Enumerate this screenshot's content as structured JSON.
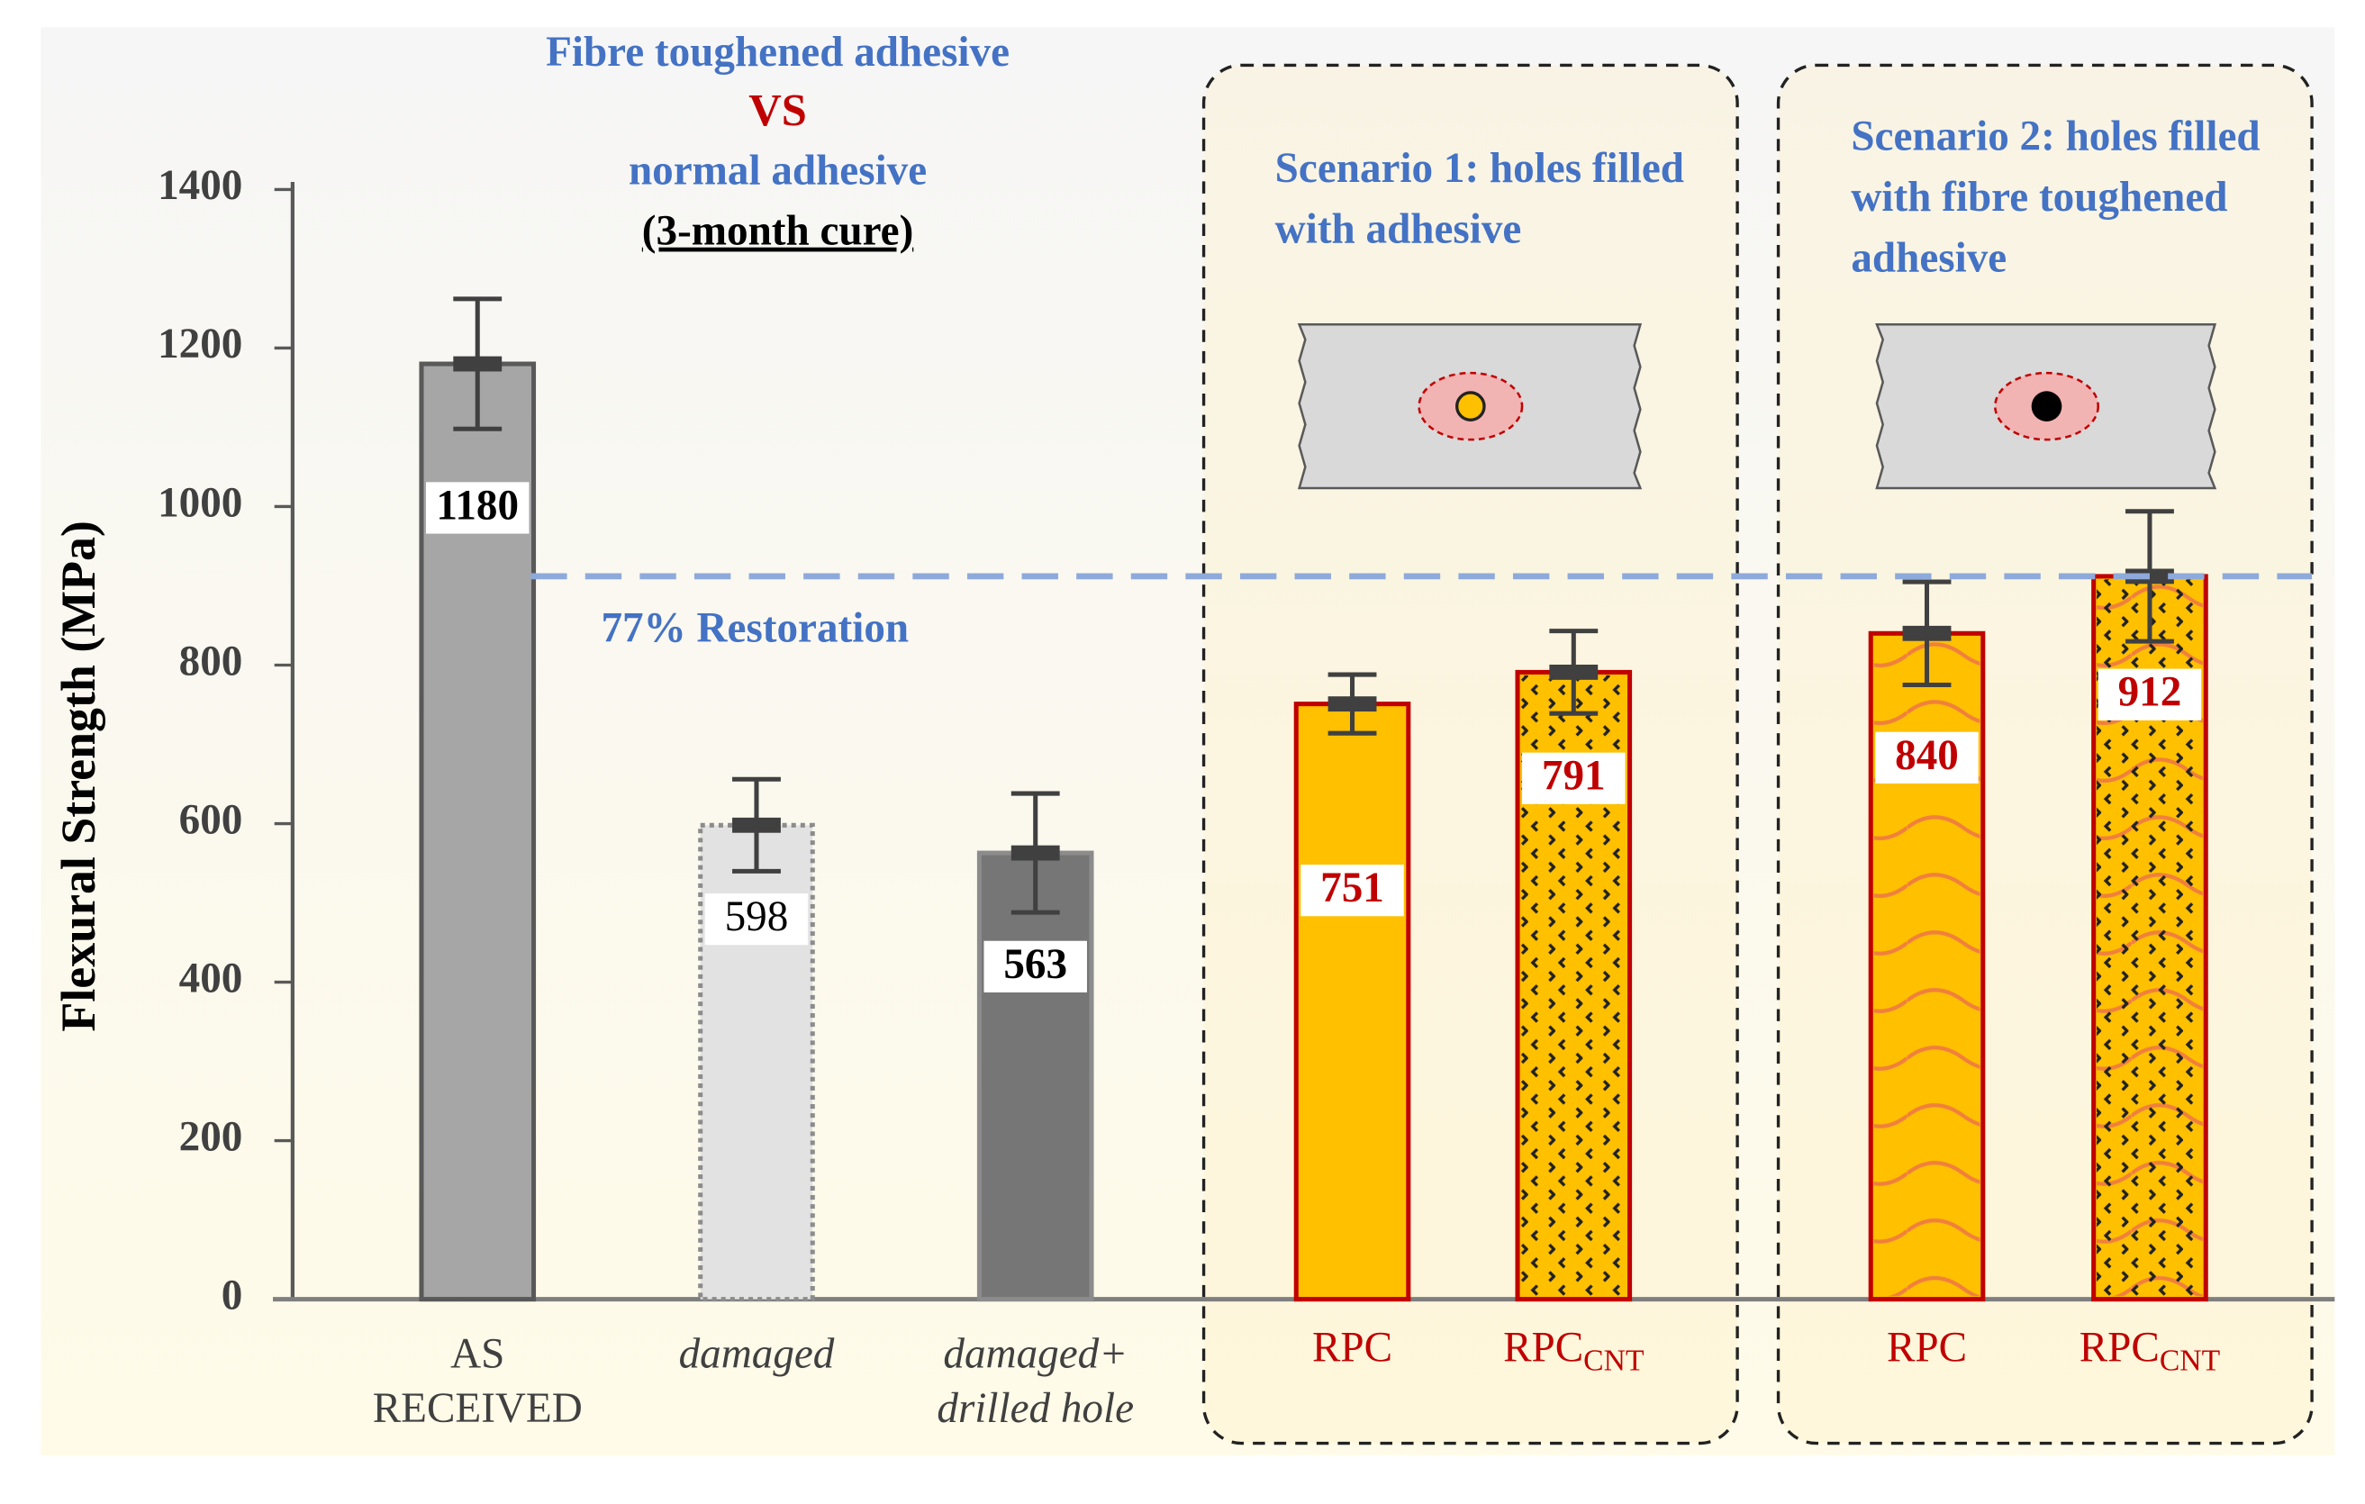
{
  "chart_data": {
    "type": "bar",
    "title_lines": [
      "Fibre toughened adhesive",
      "VS",
      "normal adhesive",
      "(3-month cure)"
    ],
    "title_colors": [
      "#4472c4",
      "#c00000",
      "#4472c4",
      "#000000"
    ],
    "y_label": "Flexural Strength (MPa)",
    "categories": [
      "AS RECEIVED",
      "damaged",
      "damaged+ drilled hole",
      "RPC",
      "RPC",
      "RPC",
      "RPC"
    ],
    "category_subscripts": [
      null,
      null,
      null,
      null,
      "CNT",
      null,
      "CNT"
    ],
    "category_colors": [
      "#404040",
      "#404040",
      "#404040",
      "#c00000",
      "#c00000",
      "#c00000",
      "#c00000"
    ],
    "values": [
      1180,
      598,
      563,
      751,
      791,
      840,
      912
    ],
    "errors": [
      82,
      58,
      75,
      37,
      52,
      65,
      82
    ],
    "colors": [
      "#a6a6a6",
      "#e2e2e2",
      "#767676",
      "#ffc000",
      "#ffc000",
      "#ffc000",
      "#ffc000"
    ],
    "border_colors": [
      "#595959",
      "#8c8c8c",
      "#8c8c8c",
      "#c00000",
      "#c00000",
      "#c00000",
      "#c00000"
    ],
    "patterns": [
      null,
      null,
      null,
      null,
      "dots",
      "waves",
      "waves-dots"
    ],
    "label_colors": [
      "#000000",
      "#000000",
      "#000000",
      "#c00000",
      "#c00000",
      "#c00000",
      "#c00000"
    ],
    "reference": {
      "value": 912,
      "label": "77% Restoration",
      "color": "#8eaadb"
    },
    "scenarios": [
      "Scenario 1: holes filled with adhesive",
      "Scenario 2: holes filled with fibre toughened adhesive"
    ],
    "ylim": [
      0,
      1400
    ],
    "yticks": [
      0,
      200,
      400,
      600,
      800,
      1000,
      1200,
      1400
    ]
  }
}
